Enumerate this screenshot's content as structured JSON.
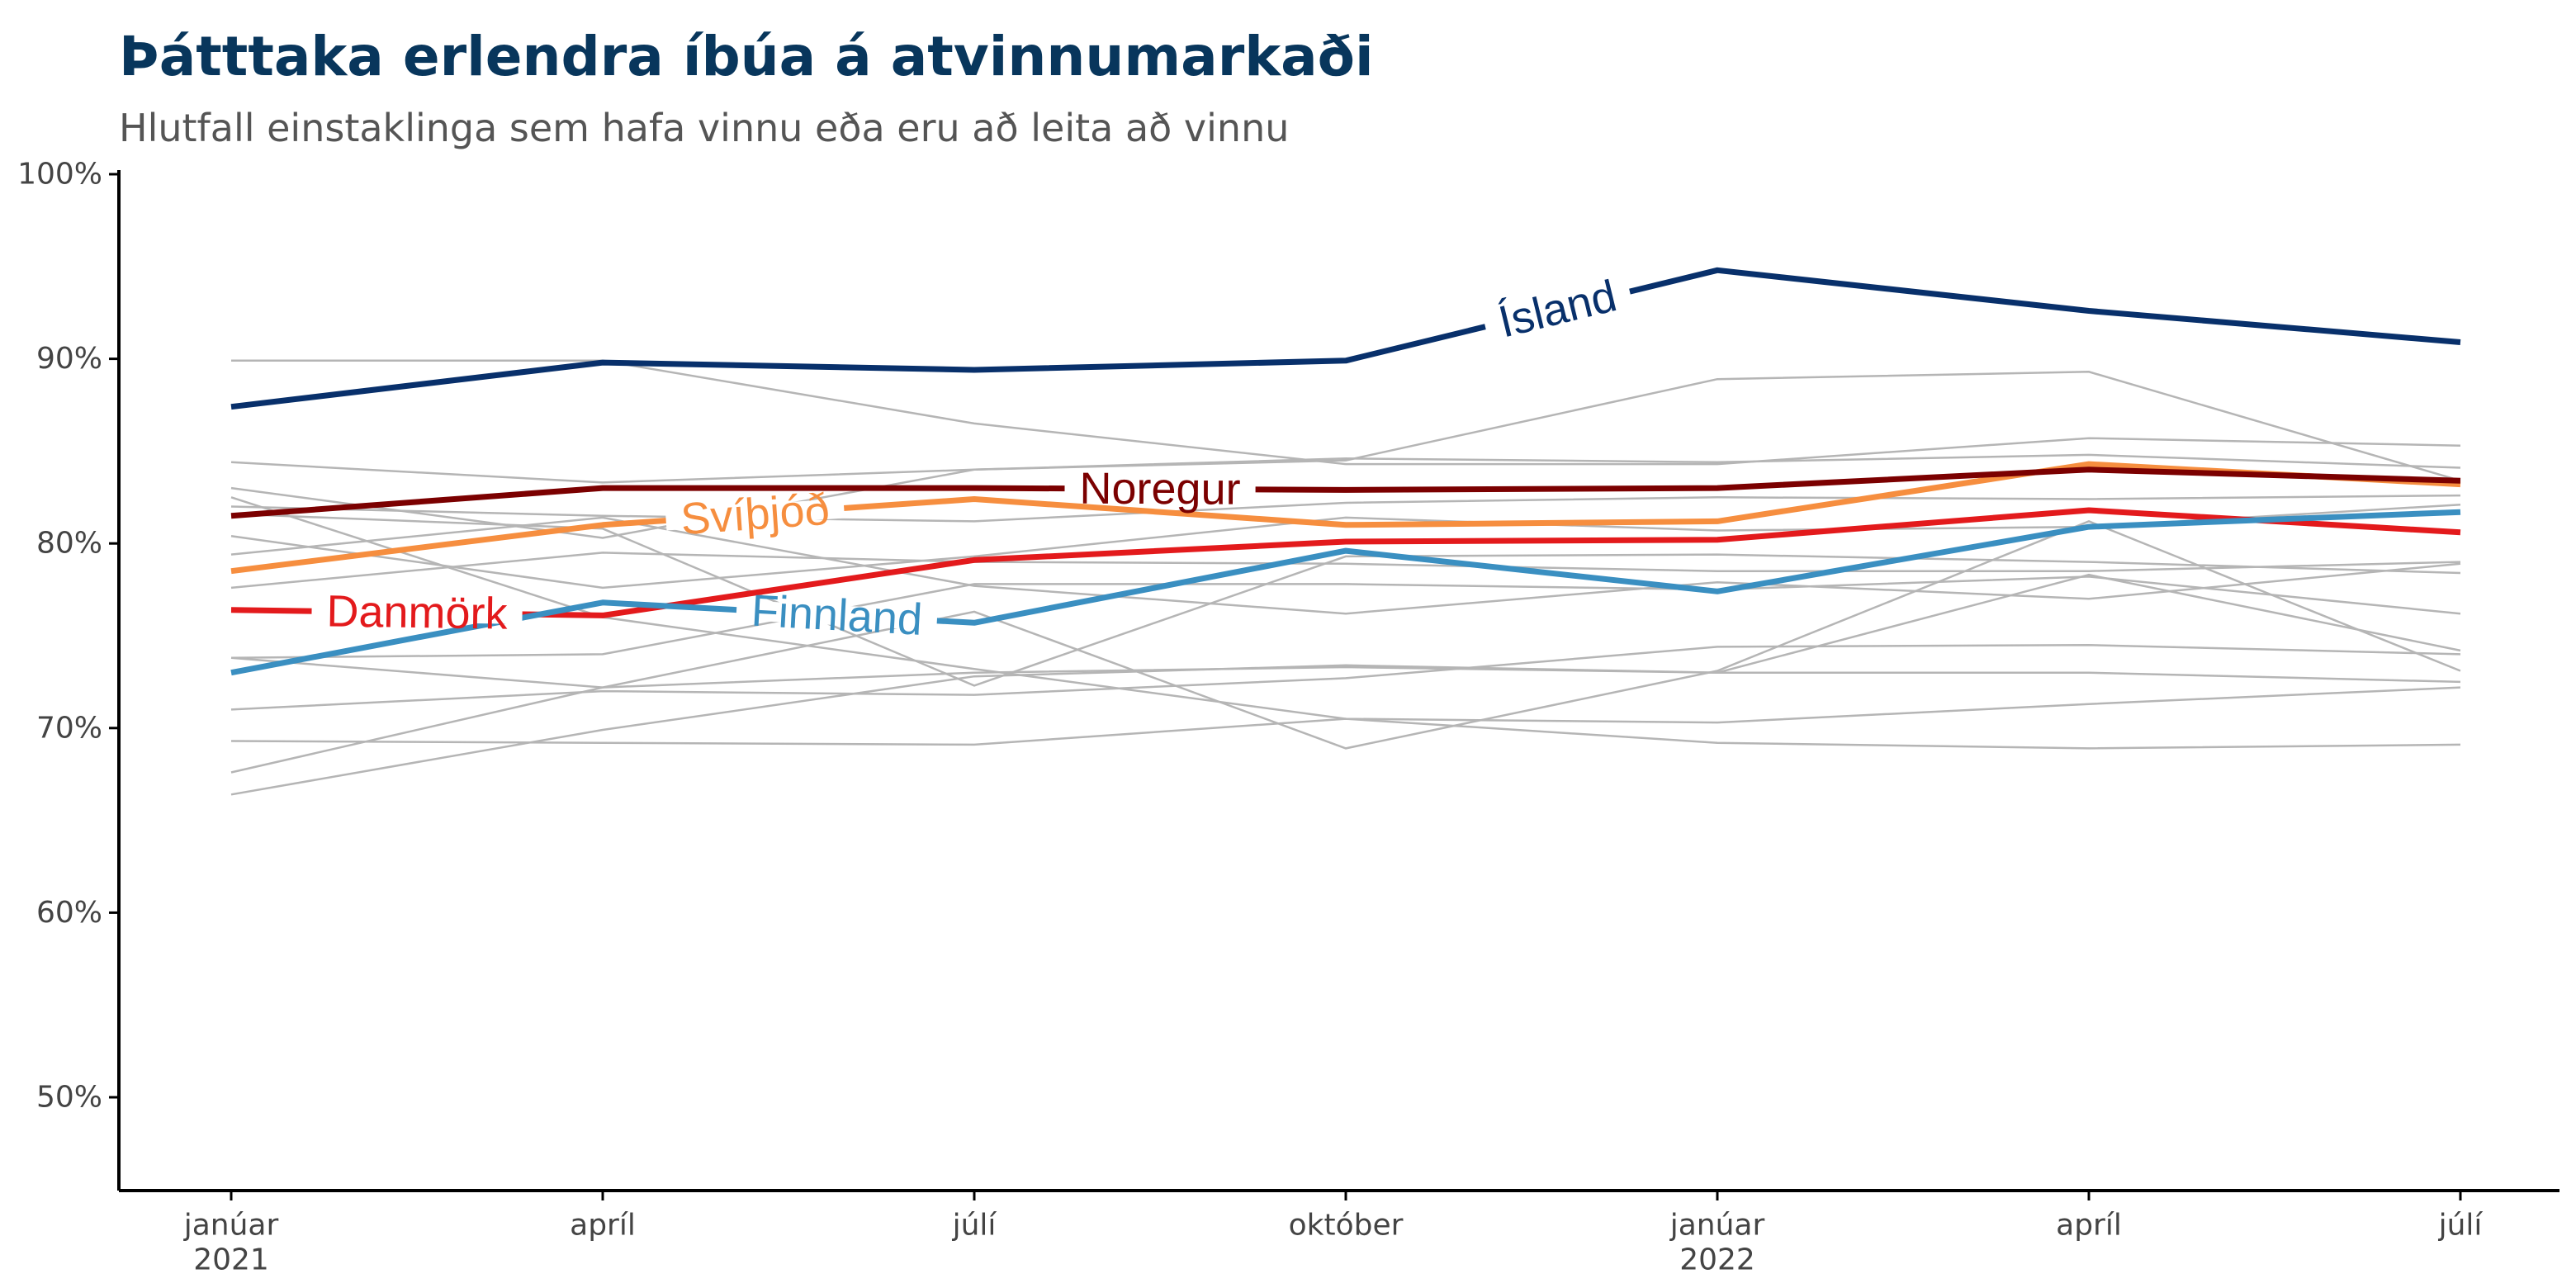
{
  "title": "Þátttaka erlendra íbúa á atvinnumarkaði",
  "subtitle": "Hlutfall einstaklinga sem hafa vinnu eða eru að leita að vinnu",
  "chart_data": {
    "type": "line",
    "title": "Þátttaka erlendra íbúa á atvinnumarkaði",
    "subtitle": "Hlutfall einstaklinga sem hafa vinnu eða eru að leita að vinnu",
    "xlabel": "",
    "ylabel": "",
    "x": [
      "2021-01",
      "2021-04",
      "2021-07",
      "2021-10",
      "2022-01",
      "2022-04",
      "2022-07"
    ],
    "x_ticks": [
      {
        "x": "2021-01",
        "label": "janúar",
        "year": "2021"
      },
      {
        "x": "2021-04",
        "label": "apríl",
        "year": ""
      },
      {
        "x": "2021-07",
        "label": "júlí",
        "year": ""
      },
      {
        "x": "2021-10",
        "label": "október",
        "year": ""
      },
      {
        "x": "2022-01",
        "label": "janúar",
        "year": "2022"
      },
      {
        "x": "2022-04",
        "label": "apríl",
        "year": ""
      },
      {
        "x": "2022-07",
        "label": "júlí",
        "year": ""
      }
    ],
    "ylim": [
      45,
      100
    ],
    "y_ticks": [
      {
        "value": 50,
        "label": "50%"
      },
      {
        "value": 60,
        "label": "60%"
      },
      {
        "value": 70,
        "label": "70%"
      },
      {
        "value": 80,
        "label": "80%"
      },
      {
        "value": 90,
        "label": "90%"
      },
      {
        "value": 100,
        "label": "100%"
      }
    ],
    "grid": false,
    "highlighted_series": [
      {
        "name": "Ísland",
        "color": "#08306b",
        "values": [
          87.4,
          89.8,
          89.4,
          89.9,
          94.8,
          92.6,
          90.9
        ]
      },
      {
        "name": "Noregur",
        "color": "#7b0000",
        "values": [
          81.5,
          83.0,
          83.0,
          82.9,
          83.0,
          84.0,
          83.4
        ]
      },
      {
        "name": "Svíþjóð",
        "color": "#f68e3f",
        "values": [
          78.5,
          81.0,
          82.4,
          81.0,
          81.2,
          84.3,
          83.2
        ]
      },
      {
        "name": "Danmörk",
        "color": "#e31a1c",
        "values": [
          76.4,
          76.1,
          79.1,
          80.1,
          80.2,
          81.8,
          80.6
        ]
      },
      {
        "name": "Finnland",
        "color": "#3a8fc1",
        "values": [
          73.0,
          76.8,
          75.7,
          79.6,
          77.4,
          80.9,
          81.7
        ]
      }
    ],
    "background_series_color": "#b5b5b5",
    "background_series": [
      [
        89.9,
        89.9,
        86.5,
        84.3,
        84.3,
        85.7,
        85.3
      ],
      [
        84.4,
        83.3,
        84.0,
        84.5,
        88.9,
        89.3,
        83.4
      ],
      [
        83.0,
        80.3,
        84.0,
        84.6,
        84.4,
        84.8,
        84.1
      ],
      [
        82.0,
        81.5,
        81.2,
        82.2,
        82.5,
        82.4,
        82.6
      ],
      [
        80.4,
        77.6,
        79.3,
        81.4,
        80.7,
        80.9,
        82.1
      ],
      [
        77.6,
        79.5,
        79.0,
        78.9,
        78.5,
        78.5,
        79.0
      ],
      [
        79.4,
        81.4,
        77.7,
        76.2,
        77.9,
        77.0,
        78.9
      ],
      [
        81.6,
        80.8,
        72.3,
        79.3,
        79.4,
        79.0,
        78.4
      ],
      [
        73.8,
        74.0,
        77.8,
        77.8,
        77.5,
        78.2,
        76.2
      ],
      [
        82.5,
        76.0,
        73.2,
        70.5,
        70.3,
        71.3,
        72.2
      ],
      [
        73.8,
        72.2,
        73.0,
        73.3,
        73.0,
        73.0,
        72.5
      ],
      [
        71.0,
        72.0,
        71.8,
        72.7,
        74.4,
        74.5,
        74.0
      ],
      [
        66.4,
        69.9,
        72.8,
        73.4,
        73.0,
        78.3,
        74.2
      ],
      [
        67.6,
        72.2,
        76.3,
        68.9,
        73.1,
        81.2,
        73.1
      ],
      [
        69.3,
        69.2,
        69.1,
        70.5,
        69.2,
        68.9,
        69.1
      ]
    ]
  }
}
